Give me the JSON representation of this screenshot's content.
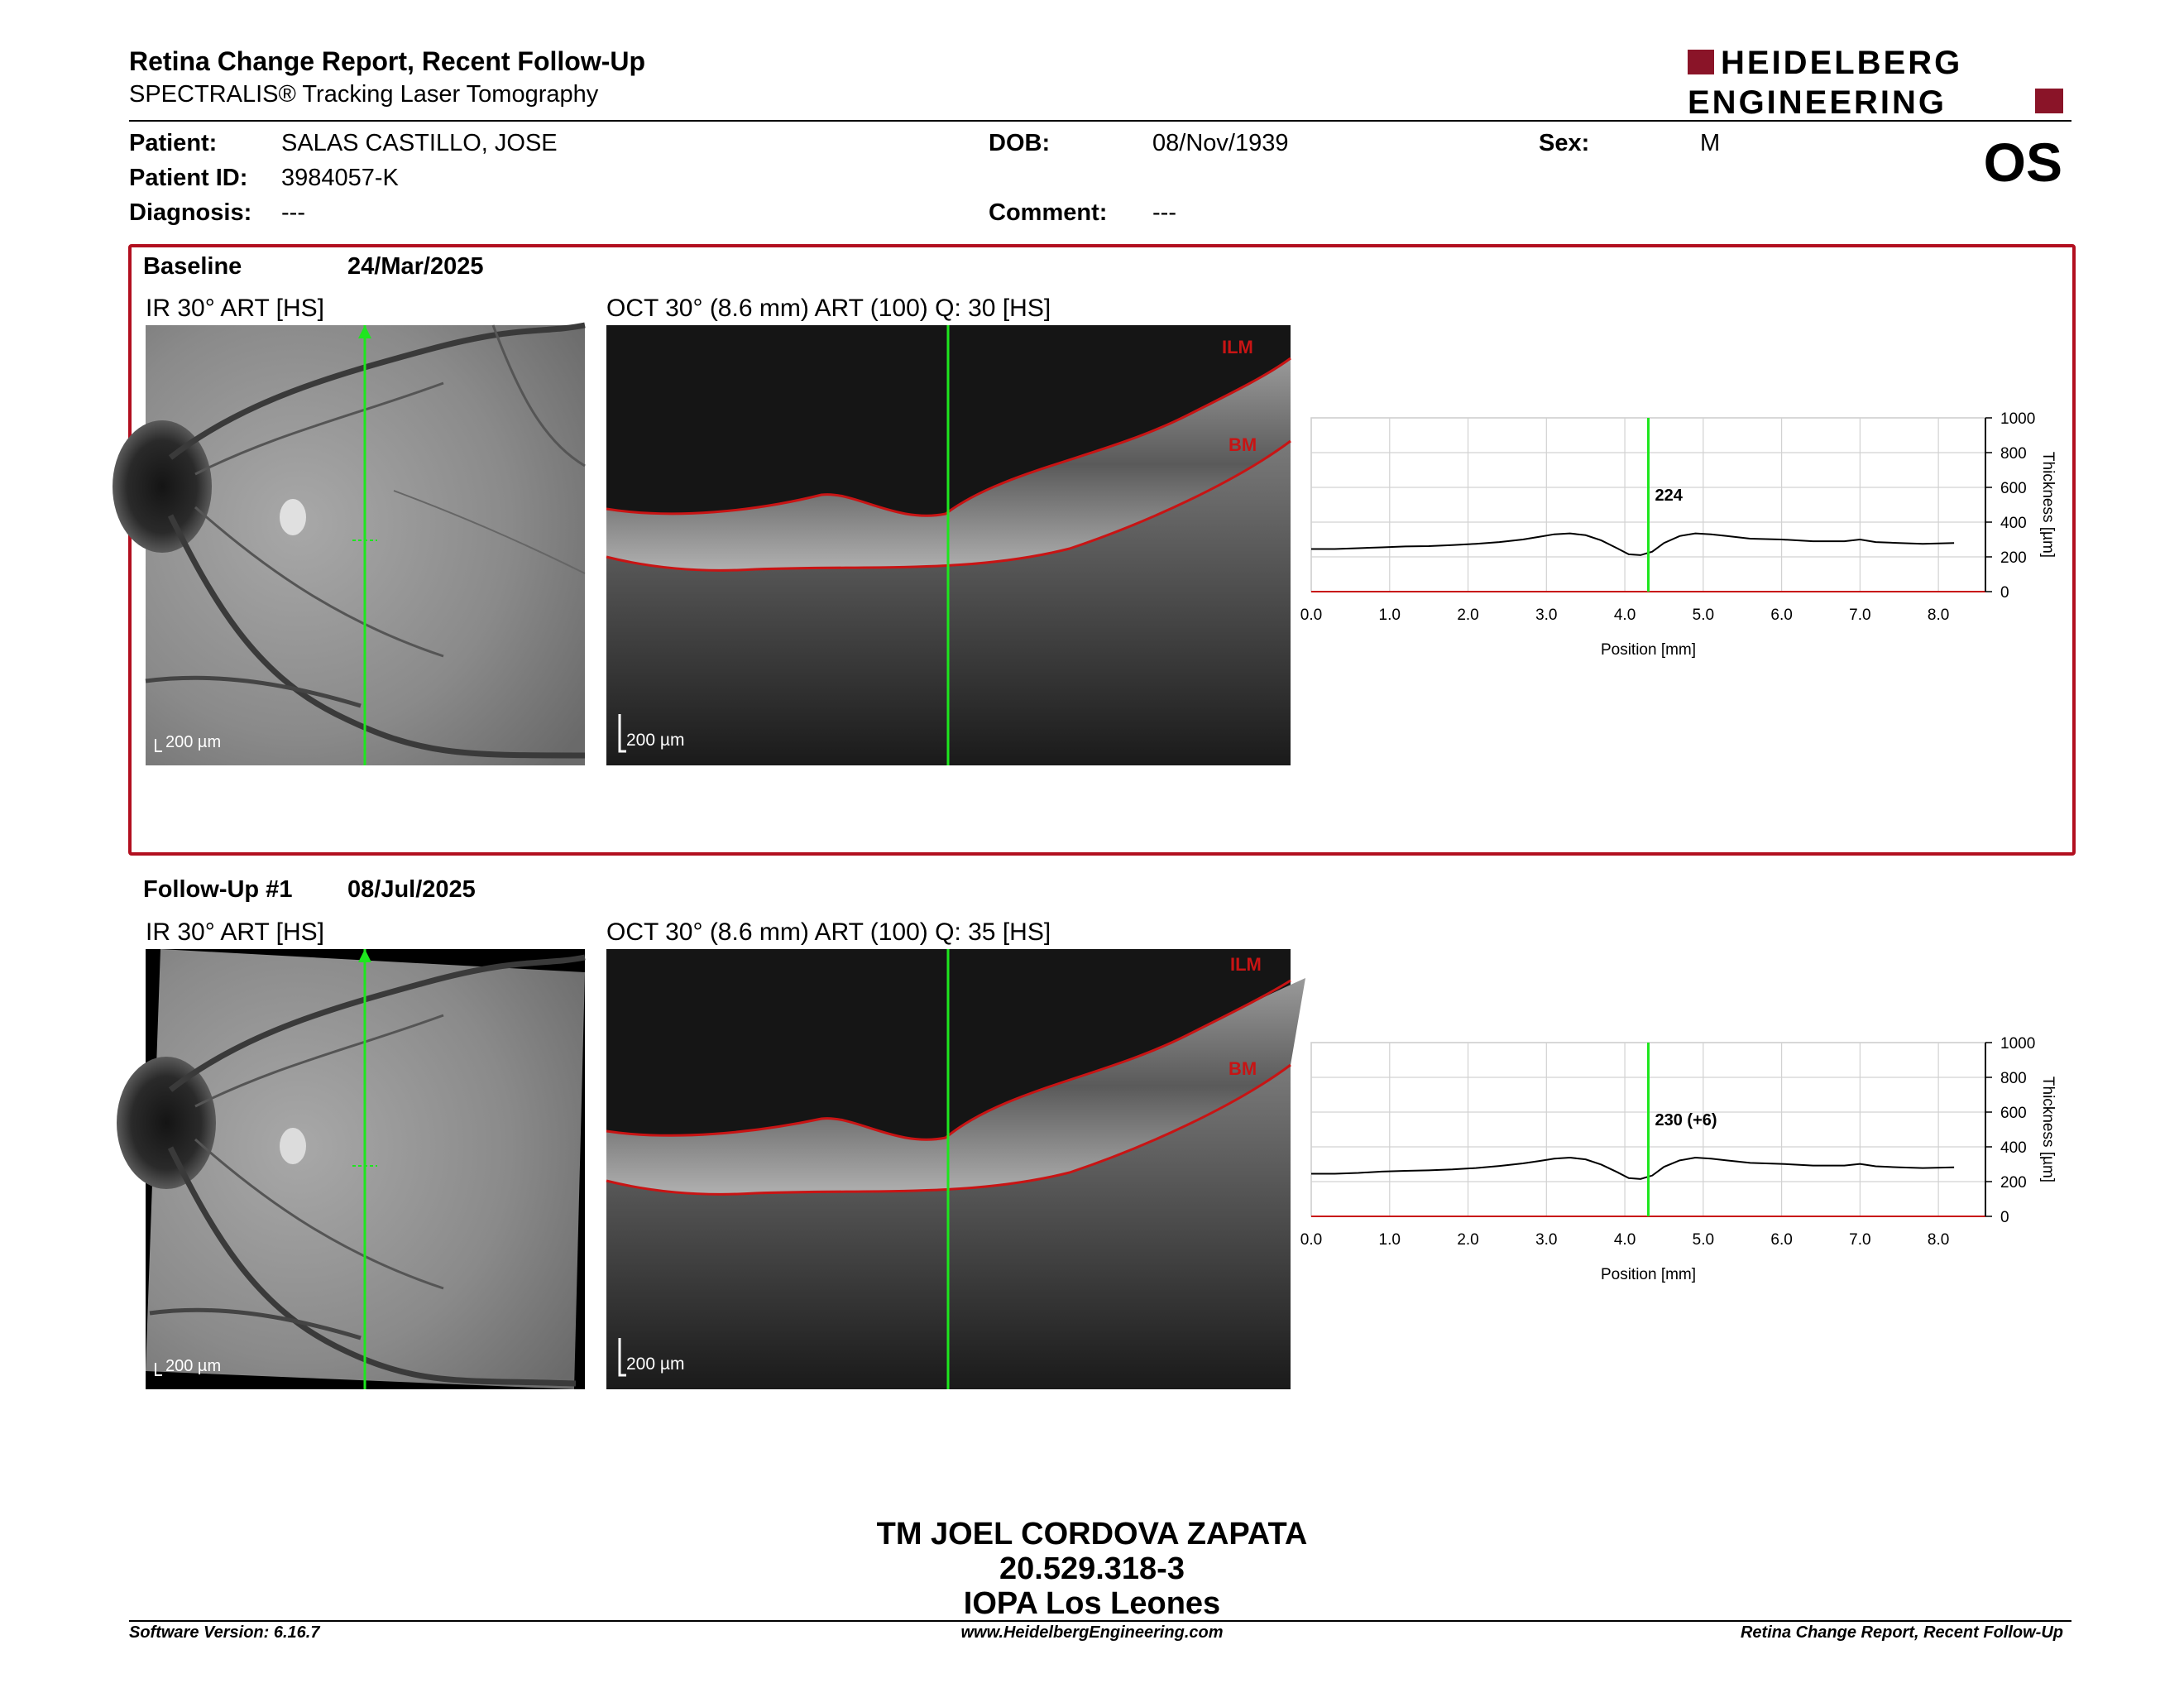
{
  "header": {
    "title": "Retina Change Report, Recent Follow-Up",
    "subtitle": "SPECTRALIS® Tracking Laser Tomography",
    "logo_line1": "HEIDELBERG",
    "logo_line2": "ENGINEERING",
    "eye": "OS"
  },
  "patient": {
    "patient_label": "Patient:",
    "patient_value": "SALAS CASTILLO, JOSE",
    "id_label": "Patient ID:",
    "id_value": "3984057-K",
    "diagnosis_label": "Diagnosis:",
    "diagnosis_value": "---",
    "dob_label": "DOB:",
    "dob_value": "08/Nov/1939",
    "comment_label": "Comment:",
    "comment_value": "---",
    "sex_label": "Sex:",
    "sex_value": "M"
  },
  "baseline": {
    "label": "Baseline",
    "date": "24/Mar/2025",
    "ir_title": "IR 30° ART [HS]",
    "oct_title": "OCT 30° (8.6 mm) ART (100) Q: 30 [HS]",
    "scale": "200 µm",
    "ilm": "ILM",
    "bm": "BM",
    "readout": "224"
  },
  "followup": {
    "label": "Follow-Up #1",
    "date": "08/Jul/2025",
    "ir_title": "IR 30° ART [HS]",
    "oct_title": "OCT 30° (8.6 mm) ART (100) Q: 35 [HS]",
    "scale": "200 µm",
    "ilm": "ILM",
    "bm": "BM",
    "readout": "230 (+6)"
  },
  "colors": {
    "frame_red": "#b20f1f",
    "scan_green": "#1ee61e",
    "layer_red": "#c81414"
  },
  "chart_data": [
    {
      "type": "line",
      "title": "",
      "xlabel": "Position [mm]",
      "ylabel": "Thickness [µm]",
      "xlim": [
        0,
        8.6
      ],
      "ylim": [
        0,
        1000
      ],
      "x_ticks": [
        "0.0",
        "1.0",
        "2.0",
        "3.0",
        "4.0",
        "5.0",
        "6.0",
        "7.0",
        "8.0"
      ],
      "y_ticks": [
        "0",
        "200",
        "400",
        "600",
        "800",
        "1000"
      ],
      "grid": true,
      "marker_x": 4.3,
      "series": [
        {
          "x": [
            0.0,
            0.3,
            0.6,
            0.9,
            1.2,
            1.5,
            1.8,
            2.1,
            2.4,
            2.7,
            2.9,
            3.1,
            3.3,
            3.5,
            3.7,
            3.9,
            4.05,
            4.2,
            4.35,
            4.5,
            4.7,
            4.9,
            5.1,
            5.3,
            5.6,
            6.0,
            6.4,
            6.8,
            7.0,
            7.2,
            7.5,
            7.8,
            8.2
          ],
          "y": [
            245,
            245,
            250,
            255,
            260,
            262,
            268,
            275,
            285,
            300,
            315,
            330,
            335,
            325,
            295,
            250,
            215,
            210,
            230,
            280,
            320,
            335,
            330,
            320,
            305,
            300,
            290,
            290,
            300,
            285,
            280,
            275,
            280
          ]
        }
      ]
    },
    {
      "type": "line",
      "title": "",
      "xlabel": "Position [mm]",
      "ylabel": "Thickness [µm]",
      "xlim": [
        0,
        8.6
      ],
      "ylim": [
        0,
        1000
      ],
      "x_ticks": [
        "0.0",
        "1.0",
        "2.0",
        "3.0",
        "4.0",
        "5.0",
        "6.0",
        "7.0",
        "8.0"
      ],
      "y_ticks": [
        "0",
        "200",
        "400",
        "600",
        "800",
        "1000"
      ],
      "grid": true,
      "marker_x": 4.3,
      "series": [
        {
          "x": [
            0.0,
            0.3,
            0.6,
            0.9,
            1.2,
            1.5,
            1.8,
            2.1,
            2.4,
            2.7,
            2.9,
            3.1,
            3.3,
            3.5,
            3.7,
            3.9,
            4.05,
            4.2,
            4.35,
            4.5,
            4.7,
            4.9,
            5.1,
            5.3,
            5.6,
            6.0,
            6.4,
            6.8,
            7.0,
            7.2,
            7.5,
            7.8,
            8.2
          ],
          "y": [
            245,
            245,
            250,
            258,
            262,
            265,
            270,
            278,
            290,
            305,
            318,
            332,
            338,
            328,
            298,
            255,
            220,
            215,
            235,
            285,
            322,
            338,
            332,
            322,
            308,
            302,
            292,
            292,
            302,
            288,
            282,
            278,
            282
          ]
        }
      ]
    }
  ],
  "signature": {
    "line1": "TM JOEL CORDOVA ZAPATA",
    "line2": "20.529.318-3",
    "line3": "IOPA Los Leones"
  },
  "footer": {
    "left": "Software Version: 6.16.7",
    "center": "www.HeidelbergEngineering.com",
    "right": "Retina Change Report, Recent Follow-Up"
  }
}
